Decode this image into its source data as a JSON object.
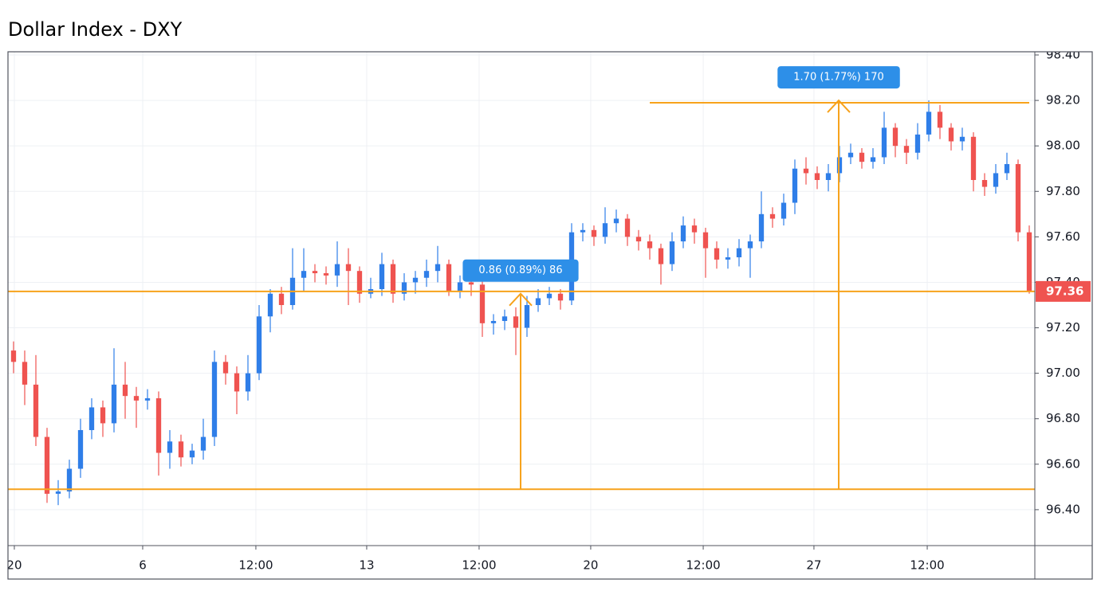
{
  "chart_data": {
    "type": "candlestick",
    "title": "Dollar Index - DXY",
    "up_color": "#2f7ee8",
    "down_color": "#ef5350",
    "drawing_color": "#f7a21b",
    "label_color": "#2d8fe8",
    "grid": true,
    "xlim": [
      -0.5,
      91.5
    ],
    "ylim": [
      96.242,
      98.414
    ],
    "xticks": [
      {
        "value": 0.07,
        "label": "20"
      },
      {
        "value": 11.57,
        "label": "6"
      },
      {
        "value": 21.71,
        "label": "12:00"
      },
      {
        "value": 31.64,
        "label": "13"
      },
      {
        "value": 41.71,
        "label": "12:00"
      },
      {
        "value": 51.71,
        "label": "20"
      },
      {
        "value": 61.79,
        "label": "12:00"
      },
      {
        "value": 71.71,
        "label": "27"
      },
      {
        "value": 81.86,
        "label": "12:00"
      }
    ],
    "yticks": [
      {
        "value": 96.4,
        "label": "96.40"
      },
      {
        "value": 96.6,
        "label": "96.60"
      },
      {
        "value": 96.8,
        "label": "96.80"
      },
      {
        "value": 97.0,
        "label": "97.00"
      },
      {
        "value": 97.2,
        "label": "97.20"
      },
      {
        "value": 97.4,
        "label": "97.40"
      },
      {
        "value": 97.6,
        "label": "97.60"
      },
      {
        "value": 97.8,
        "label": "97.80"
      },
      {
        "value": 98.0,
        "label": "98.00"
      },
      {
        "value": 98.2,
        "label": "98.20"
      },
      {
        "value": 98.4,
        "label": "98.40"
      }
    ],
    "x": [
      0,
      1,
      2,
      3,
      4,
      5,
      6,
      7,
      8,
      9,
      10,
      11,
      12,
      13,
      14,
      15,
      16,
      17,
      18,
      19,
      20,
      21,
      22,
      23,
      24,
      25,
      26,
      27,
      28,
      29,
      30,
      31,
      32,
      33,
      34,
      35,
      36,
      37,
      38,
      39,
      40,
      41,
      42,
      43,
      44,
      45,
      46,
      47,
      48,
      49,
      50,
      51,
      52,
      53,
      54,
      55,
      56,
      57,
      58,
      59,
      60,
      61,
      62,
      63,
      64,
      65,
      66,
      67,
      68,
      69,
      70,
      71,
      72,
      73,
      74,
      75,
      76,
      77,
      78,
      79,
      80,
      81,
      82,
      83,
      84,
      85,
      86,
      87,
      88,
      89,
      90,
      91
    ],
    "ohlc": [
      [
        97.1,
        97.14,
        97.0,
        97.05
      ],
      [
        97.05,
        97.1,
        96.86,
        96.95
      ],
      [
        96.95,
        97.08,
        96.68,
        96.72
      ],
      [
        96.72,
        96.76,
        96.43,
        96.47
      ],
      [
        96.47,
        96.53,
        96.42,
        96.48
      ],
      [
        96.48,
        96.62,
        96.45,
        96.58
      ],
      [
        96.58,
        96.8,
        96.54,
        96.75
      ],
      [
        96.75,
        96.89,
        96.71,
        96.85
      ],
      [
        96.85,
        96.88,
        96.72,
        96.78
      ],
      [
        96.78,
        97.11,
        96.74,
        96.95
      ],
      [
        96.95,
        97.05,
        96.8,
        96.9
      ],
      [
        96.9,
        96.94,
        96.76,
        96.88
      ],
      [
        96.88,
        96.93,
        96.84,
        96.89
      ],
      [
        96.89,
        96.92,
        96.55,
        96.65
      ],
      [
        96.65,
        96.75,
        96.58,
        96.7
      ],
      [
        96.7,
        96.73,
        96.59,
        96.63
      ],
      [
        96.63,
        96.69,
        96.6,
        96.66
      ],
      [
        96.66,
        96.8,
        96.62,
        96.72
      ],
      [
        96.72,
        97.1,
        96.68,
        97.05
      ],
      [
        97.05,
        97.08,
        96.95,
        97.0
      ],
      [
        97.0,
        97.03,
        96.82,
        96.92
      ],
      [
        96.92,
        97.08,
        96.88,
        97.0
      ],
      [
        97.0,
        97.3,
        96.97,
        97.25
      ],
      [
        97.25,
        97.37,
        97.18,
        97.35
      ],
      [
        97.35,
        97.38,
        97.26,
        97.3
      ],
      [
        97.3,
        97.55,
        97.28,
        97.42
      ],
      [
        97.42,
        97.55,
        97.36,
        97.45
      ],
      [
        97.45,
        97.48,
        97.4,
        97.44
      ],
      [
        97.44,
        97.47,
        97.39,
        97.43
      ],
      [
        97.43,
        97.58,
        97.38,
        97.48
      ],
      [
        97.48,
        97.55,
        97.3,
        97.45
      ],
      [
        97.45,
        97.47,
        97.31,
        97.35
      ],
      [
        97.35,
        97.42,
        97.33,
        97.37
      ],
      [
        97.37,
        97.53,
        97.34,
        97.48
      ],
      [
        97.48,
        97.5,
        97.31,
        97.35
      ],
      [
        97.35,
        97.44,
        97.32,
        97.4
      ],
      [
        97.4,
        97.45,
        97.35,
        97.42
      ],
      [
        97.42,
        97.5,
        97.38,
        97.45
      ],
      [
        97.45,
        97.56,
        97.4,
        97.48
      ],
      [
        97.48,
        97.5,
        97.34,
        97.36
      ],
      [
        97.36,
        97.43,
        97.33,
        97.4
      ],
      [
        97.4,
        97.44,
        97.34,
        97.39
      ],
      [
        97.39,
        97.41,
        97.16,
        97.22
      ],
      [
        97.22,
        97.26,
        97.17,
        97.23
      ],
      [
        97.23,
        97.28,
        97.19,
        97.25
      ],
      [
        97.25,
        97.29,
        97.08,
        97.2
      ],
      [
        97.2,
        97.34,
        97.16,
        97.3
      ],
      [
        97.3,
        97.37,
        97.27,
        97.33
      ],
      [
        97.33,
        97.38,
        97.3,
        97.35
      ],
      [
        97.35,
        97.37,
        97.28,
        97.32
      ],
      [
        97.32,
        97.66,
        97.3,
        97.62
      ],
      [
        97.62,
        97.66,
        97.58,
        97.63
      ],
      [
        97.63,
        97.65,
        97.56,
        97.6
      ],
      [
        97.6,
        97.73,
        97.57,
        97.66
      ],
      [
        97.66,
        97.72,
        97.62,
        97.68
      ],
      [
        97.68,
        97.7,
        97.56,
        97.6
      ],
      [
        97.6,
        97.63,
        97.54,
        97.58
      ],
      [
        97.58,
        97.61,
        97.5,
        97.55
      ],
      [
        97.55,
        97.57,
        97.39,
        97.48
      ],
      [
        97.48,
        97.62,
        97.45,
        97.58
      ],
      [
        97.58,
        97.69,
        97.55,
        97.65
      ],
      [
        97.65,
        97.68,
        97.57,
        97.62
      ],
      [
        97.62,
        97.64,
        97.42,
        97.55
      ],
      [
        97.55,
        97.58,
        97.46,
        97.5
      ],
      [
        97.5,
        97.55,
        97.46,
        97.51
      ],
      [
        97.51,
        97.59,
        97.47,
        97.55
      ],
      [
        97.55,
        97.61,
        97.42,
        97.58
      ],
      [
        97.58,
        97.8,
        97.55,
        97.7
      ],
      [
        97.7,
        97.73,
        97.64,
        97.68
      ],
      [
        97.68,
        97.79,
        97.65,
        97.75
      ],
      [
        97.75,
        97.94,
        97.7,
        97.9
      ],
      [
        97.9,
        97.95,
        97.83,
        97.88
      ],
      [
        97.88,
        97.91,
        97.81,
        97.85
      ],
      [
        97.85,
        97.92,
        97.8,
        97.88
      ],
      [
        97.88,
        98.0,
        97.84,
        97.95
      ],
      [
        97.95,
        98.01,
        97.92,
        97.97
      ],
      [
        97.97,
        97.99,
        97.9,
        97.93
      ],
      [
        97.93,
        97.99,
        97.9,
        97.95
      ],
      [
        97.95,
        98.15,
        97.92,
        98.08
      ],
      [
        98.08,
        98.1,
        97.95,
        98.0
      ],
      [
        98.0,
        98.03,
        97.92,
        97.97
      ],
      [
        97.97,
        98.1,
        97.94,
        98.05
      ],
      [
        98.05,
        98.2,
        98.02,
        98.15
      ],
      [
        98.15,
        98.18,
        98.03,
        98.08
      ],
      [
        98.08,
        98.1,
        97.98,
        98.02
      ],
      [
        98.02,
        98.08,
        97.98,
        98.04
      ],
      [
        98.04,
        98.06,
        97.8,
        97.85
      ],
      [
        97.85,
        97.88,
        97.78,
        97.82
      ],
      [
        97.82,
        97.92,
        97.79,
        97.88
      ],
      [
        97.88,
        97.97,
        97.85,
        97.92
      ],
      [
        97.92,
        97.94,
        97.58,
        97.62
      ],
      [
        97.62,
        97.65,
        97.35,
        97.36
      ]
    ],
    "horizontal_lines": [
      {
        "value": 96.49,
        "from": -0.5,
        "to": 91.5
      },
      {
        "value": 97.36,
        "from": -0.5,
        "to": 91.5
      },
      {
        "value": 98.19,
        "from": 57.0,
        "to": 91.0
      }
    ],
    "measurements": [
      {
        "x": 45.43,
        "from": 96.49,
        "to": 97.35,
        "label": "0.86 (0.89%) 86"
      },
      {
        "x": 73.93,
        "from": 96.49,
        "to": 98.2,
        "label": "1.70 (1.77%) 170"
      }
    ],
    "last_price": 97.36
  }
}
